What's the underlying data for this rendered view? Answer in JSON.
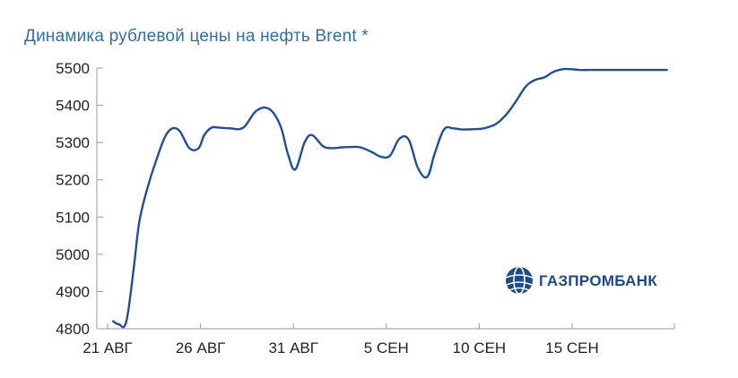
{
  "chart_data": {
    "type": "line",
    "title": "Динамика рублевой цены на нефть Brent *",
    "xlabel": "",
    "ylabel": "",
    "ylim": [
      4800,
      5500
    ],
    "yticks": [
      5500,
      5400,
      5300,
      5200,
      5100,
      5000,
      4900,
      4800
    ],
    "x_ticks": [
      {
        "label": "21 АВГ",
        "day": 0
      },
      {
        "label": "26 АВГ",
        "day": 5
      },
      {
        "label": "31 АВГ",
        "day": 10
      },
      {
        "label": "5 СЕН",
        "day": 15
      },
      {
        "label": "10 СЕН",
        "day": 20
      },
      {
        "label": "15 СЕН",
        "day": 25
      }
    ],
    "x_range_days": [
      0,
      30.5
    ],
    "line_color": "#1f4f95",
    "series": [
      {
        "x": [
          0.3,
          0.6,
          1.0,
          1.4,
          1.7,
          2.1,
          2.6,
          3.2,
          3.8,
          4.4,
          4.9,
          5.2,
          5.6,
          6.0,
          6.6,
          7.3,
          8.0,
          8.7,
          9.3,
          9.7,
          10.1,
          10.6,
          11.0,
          11.6,
          12.1,
          12.6,
          13.1,
          13.6,
          14.2,
          14.7,
          15.2,
          15.7,
          16.2,
          16.7,
          17.2,
          17.6,
          18.1,
          18.6,
          19.1,
          19.7,
          20.1,
          20.4,
          20.9,
          21.4,
          21.9,
          22.5,
          23.0,
          23.5,
          24.0,
          24.5,
          24.9,
          25.4,
          25.9,
          26.4,
          27.0,
          27.6,
          28.2,
          28.8,
          29.4,
          30.1
        ],
        "y": [
          4820,
          4812,
          4818,
          4960,
          5085,
          5170,
          5250,
          5325,
          5335,
          5285,
          5285,
          5320,
          5340,
          5340,
          5338,
          5340,
          5385,
          5390,
          5345,
          5270,
          5228,
          5300,
          5320,
          5290,
          5285,
          5287,
          5288,
          5287,
          5275,
          5262,
          5265,
          5310,
          5308,
          5232,
          5208,
          5270,
          5335,
          5338,
          5335,
          5336,
          5337,
          5340,
          5350,
          5372,
          5405,
          5450,
          5468,
          5475,
          5490,
          5497,
          5497,
          5495,
          5495,
          5495,
          5495,
          5495,
          5495,
          5495,
          5495,
          5495
        ]
      }
    ]
  },
  "brand": {
    "logo_text": "ГАЗПРОМБАНК",
    "logo_icon": "gazprombank-globe-icon",
    "brand_color": "#1e4b87"
  }
}
